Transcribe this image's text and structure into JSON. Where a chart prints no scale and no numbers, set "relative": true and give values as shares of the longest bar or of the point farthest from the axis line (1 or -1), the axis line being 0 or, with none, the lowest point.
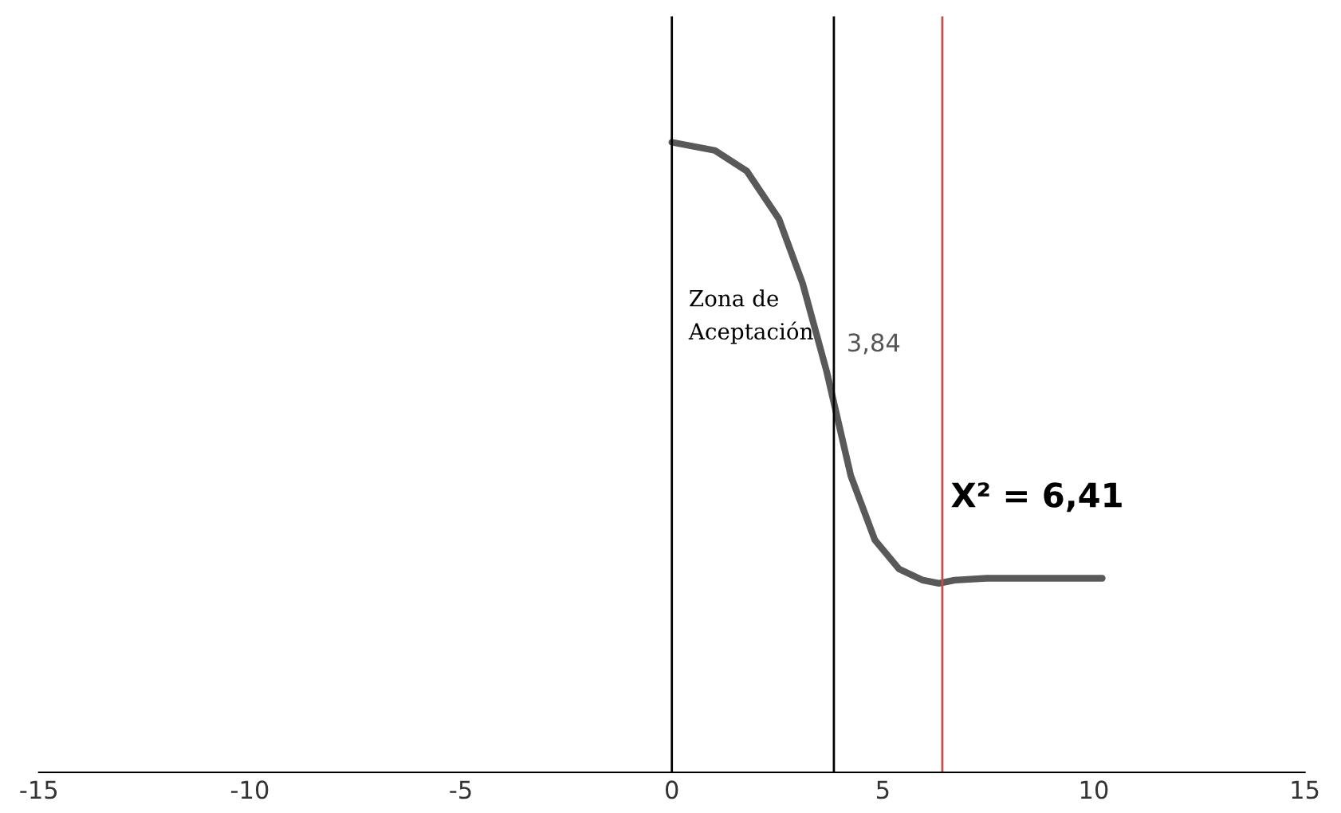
{
  "chart_data": {
    "type": "line",
    "relative": true,
    "x": [
      0,
      1.02,
      1.78,
      2.54,
      3.1,
      3.67,
      4.24,
      4.81,
      5.38,
      5.95,
      6.33,
      6.7,
      7.46,
      10.2
    ],
    "series": [
      {
        "color": "#595959",
        "values": [
          1,
          0.987,
          0.954,
          0.878,
          0.776,
          0.636,
          0.471,
          0.369,
          0.323,
          0.305,
          0.3,
          0.305,
          0.308,
          0.308
        ]
      }
    ],
    "xlim": [
      -15,
      15
    ],
    "xticks": [
      -15,
      -10,
      -5,
      0,
      5,
      10,
      15
    ],
    "ref_lines": [
      {
        "axis": "x",
        "value": 0,
        "color": "#000000"
      },
      {
        "axis": "x",
        "value": 3.84,
        "label": "3,84",
        "color": "#000000"
      },
      {
        "axis": "x",
        "value": 6.41,
        "label": "X² = 6,41",
        "color": "#c0504d"
      }
    ],
    "annotations": [
      "Zona de\nAceptación"
    ],
    "grid": false,
    "legend": false,
    "marker": "none",
    "line_style": "solid"
  }
}
